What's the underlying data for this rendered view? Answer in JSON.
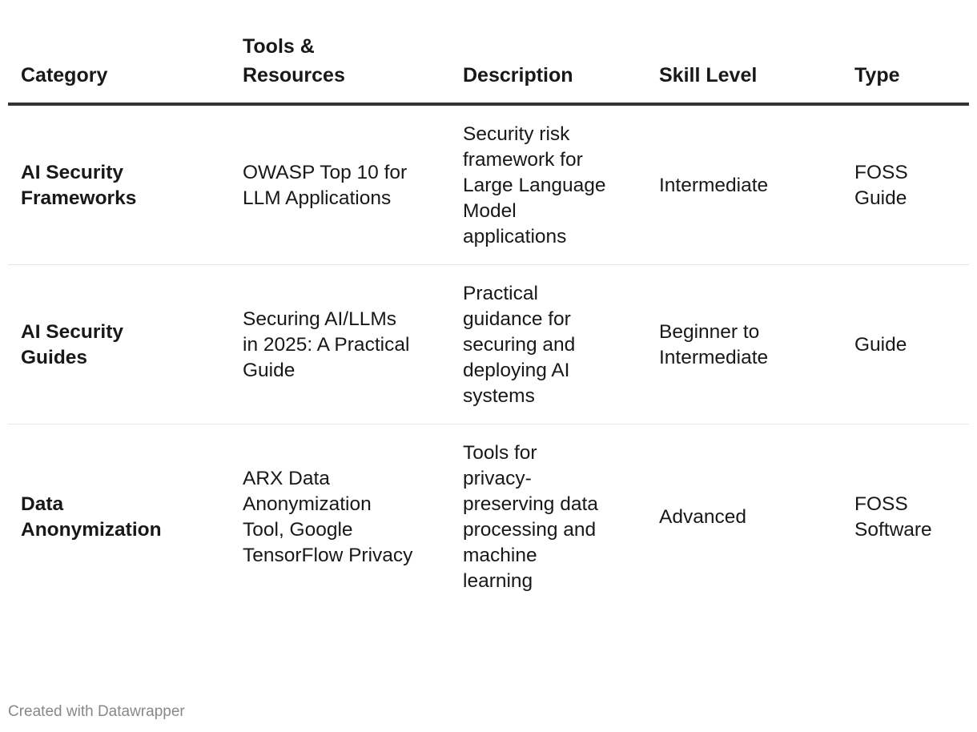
{
  "chart_data": {
    "type": "table",
    "columns": [
      "Category",
      "Tools & Resources",
      "Description",
      "Skill Level",
      "Type"
    ],
    "rows": [
      [
        "AI Security Frameworks",
        "OWASP Top 10 for LLM Applications",
        "Security risk framework for Large Language Model applications",
        "Intermediate",
        "FOSS Guide"
      ],
      [
        "AI Security Guides",
        "Securing AI/LLMs in 2025: A Practical Guide",
        "Practical guidance for securing and deploying AI systems",
        "Beginner to Intermediate",
        "Guide"
      ],
      [
        "Data Anonymization",
        "ARX Data Anonymization Tool, Google TensorFlow Privacy",
        "Tools for privacy-preserving data processing and machine learning",
        "Advanced",
        "FOSS Software"
      ]
    ]
  },
  "footer": "Created with Datawrapper",
  "colors": {
    "header_rule": "#333333",
    "row_divider": "#e6e6e6",
    "text": "#181818",
    "footer": "#888888"
  }
}
